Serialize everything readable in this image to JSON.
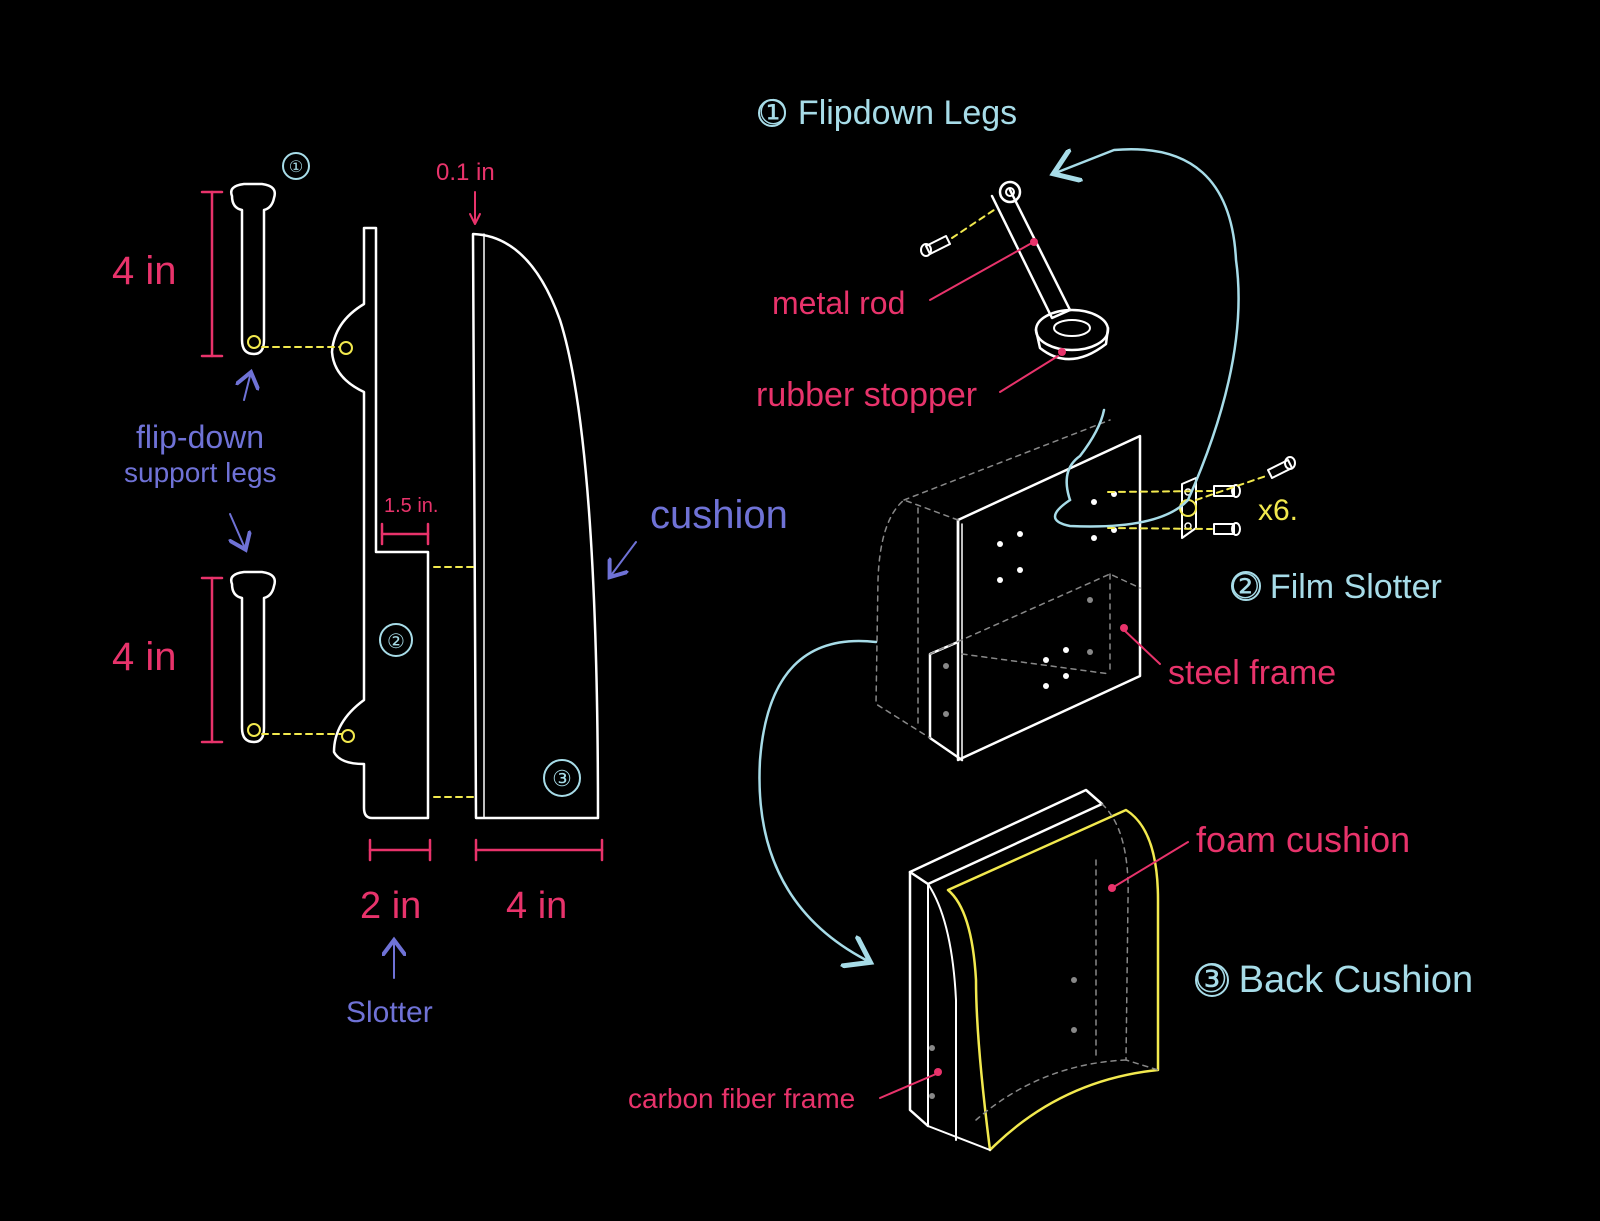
{
  "colors": {
    "background": "#000000",
    "outline": "#ffffff",
    "dimension": "#e8336b",
    "annotation": "#6f72d6",
    "section_title": "#a7dce8",
    "fastener": "#f2e94e"
  },
  "side_view": {
    "callouts": {
      "part1": "①",
      "part2": "②",
      "part3": "③"
    },
    "dims": {
      "leg_top": "4 in",
      "leg_bottom": "4 in",
      "cushion_tip": "0.1 in",
      "slot_width": "1.5 in.",
      "slotter_width": "2 in",
      "cushion_width": "4 in"
    },
    "notes": {
      "legs_line1": "flip-down",
      "legs_line2": "support legs",
      "cushion": "cushion",
      "slotter": "Slotter"
    }
  },
  "exploded_view": {
    "titles": {
      "legs": "① Flipdown Legs",
      "slotter": "② Film Slotter",
      "cushion": "③ Back Cushion"
    },
    "labels": {
      "metal_rod": "metal rod",
      "rubber_stopper": "rubber stopper",
      "steel_frame": "steel frame",
      "foam_cushion": "foam cushion",
      "carbon_fiber_frame": "carbon fiber frame"
    },
    "screw_count": "x6."
  }
}
